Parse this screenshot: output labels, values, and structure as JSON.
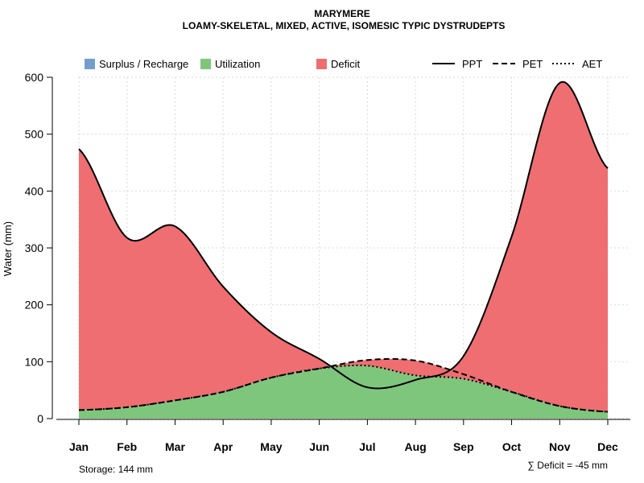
{
  "chart_data": {
    "type": "area",
    "title": "MARYMERE",
    "subtitle": "LOAMY-SKELETAL, MIXED, ACTIVE, ISOMESIC TYPIC DYSTRUDEPTS",
    "ylabel": "Water (mm)",
    "xlabel": "",
    "ylim": [
      0,
      600
    ],
    "yticks": [
      0,
      100,
      200,
      300,
      400,
      500,
      600
    ],
    "grid": true,
    "legend_position": "top",
    "categories": [
      "Jan",
      "Feb",
      "Mar",
      "Apr",
      "May",
      "Jun",
      "Jul",
      "Aug",
      "Sep",
      "Oct",
      "Nov",
      "Dec"
    ],
    "series": [
      {
        "name": "PPT",
        "style": "solid",
        "values": [
          474,
          318,
          338,
          232,
          152,
          105,
          55,
          68,
          110,
          320,
          590,
          440
        ]
      },
      {
        "name": "PET",
        "style": "dashed",
        "values": [
          15,
          20,
          32,
          47,
          72,
          88,
          103,
          102,
          78,
          47,
          22,
          12
        ]
      },
      {
        "name": "AET",
        "style": "dotted",
        "values": [
          15,
          20,
          32,
          47,
          72,
          88,
          93,
          76,
          70,
          47,
          22,
          12
        ]
      }
    ],
    "fills": [
      {
        "name": "Surplus / Recharge",
        "color": "#729ECE"
      },
      {
        "name": "Utilization",
        "color": "#7FC67D"
      },
      {
        "name": "Deficit",
        "color": "#EE6E72"
      }
    ],
    "storage_label": "Storage: 144 mm",
    "deficit_label": "∑ Deficit = -45 mm"
  }
}
